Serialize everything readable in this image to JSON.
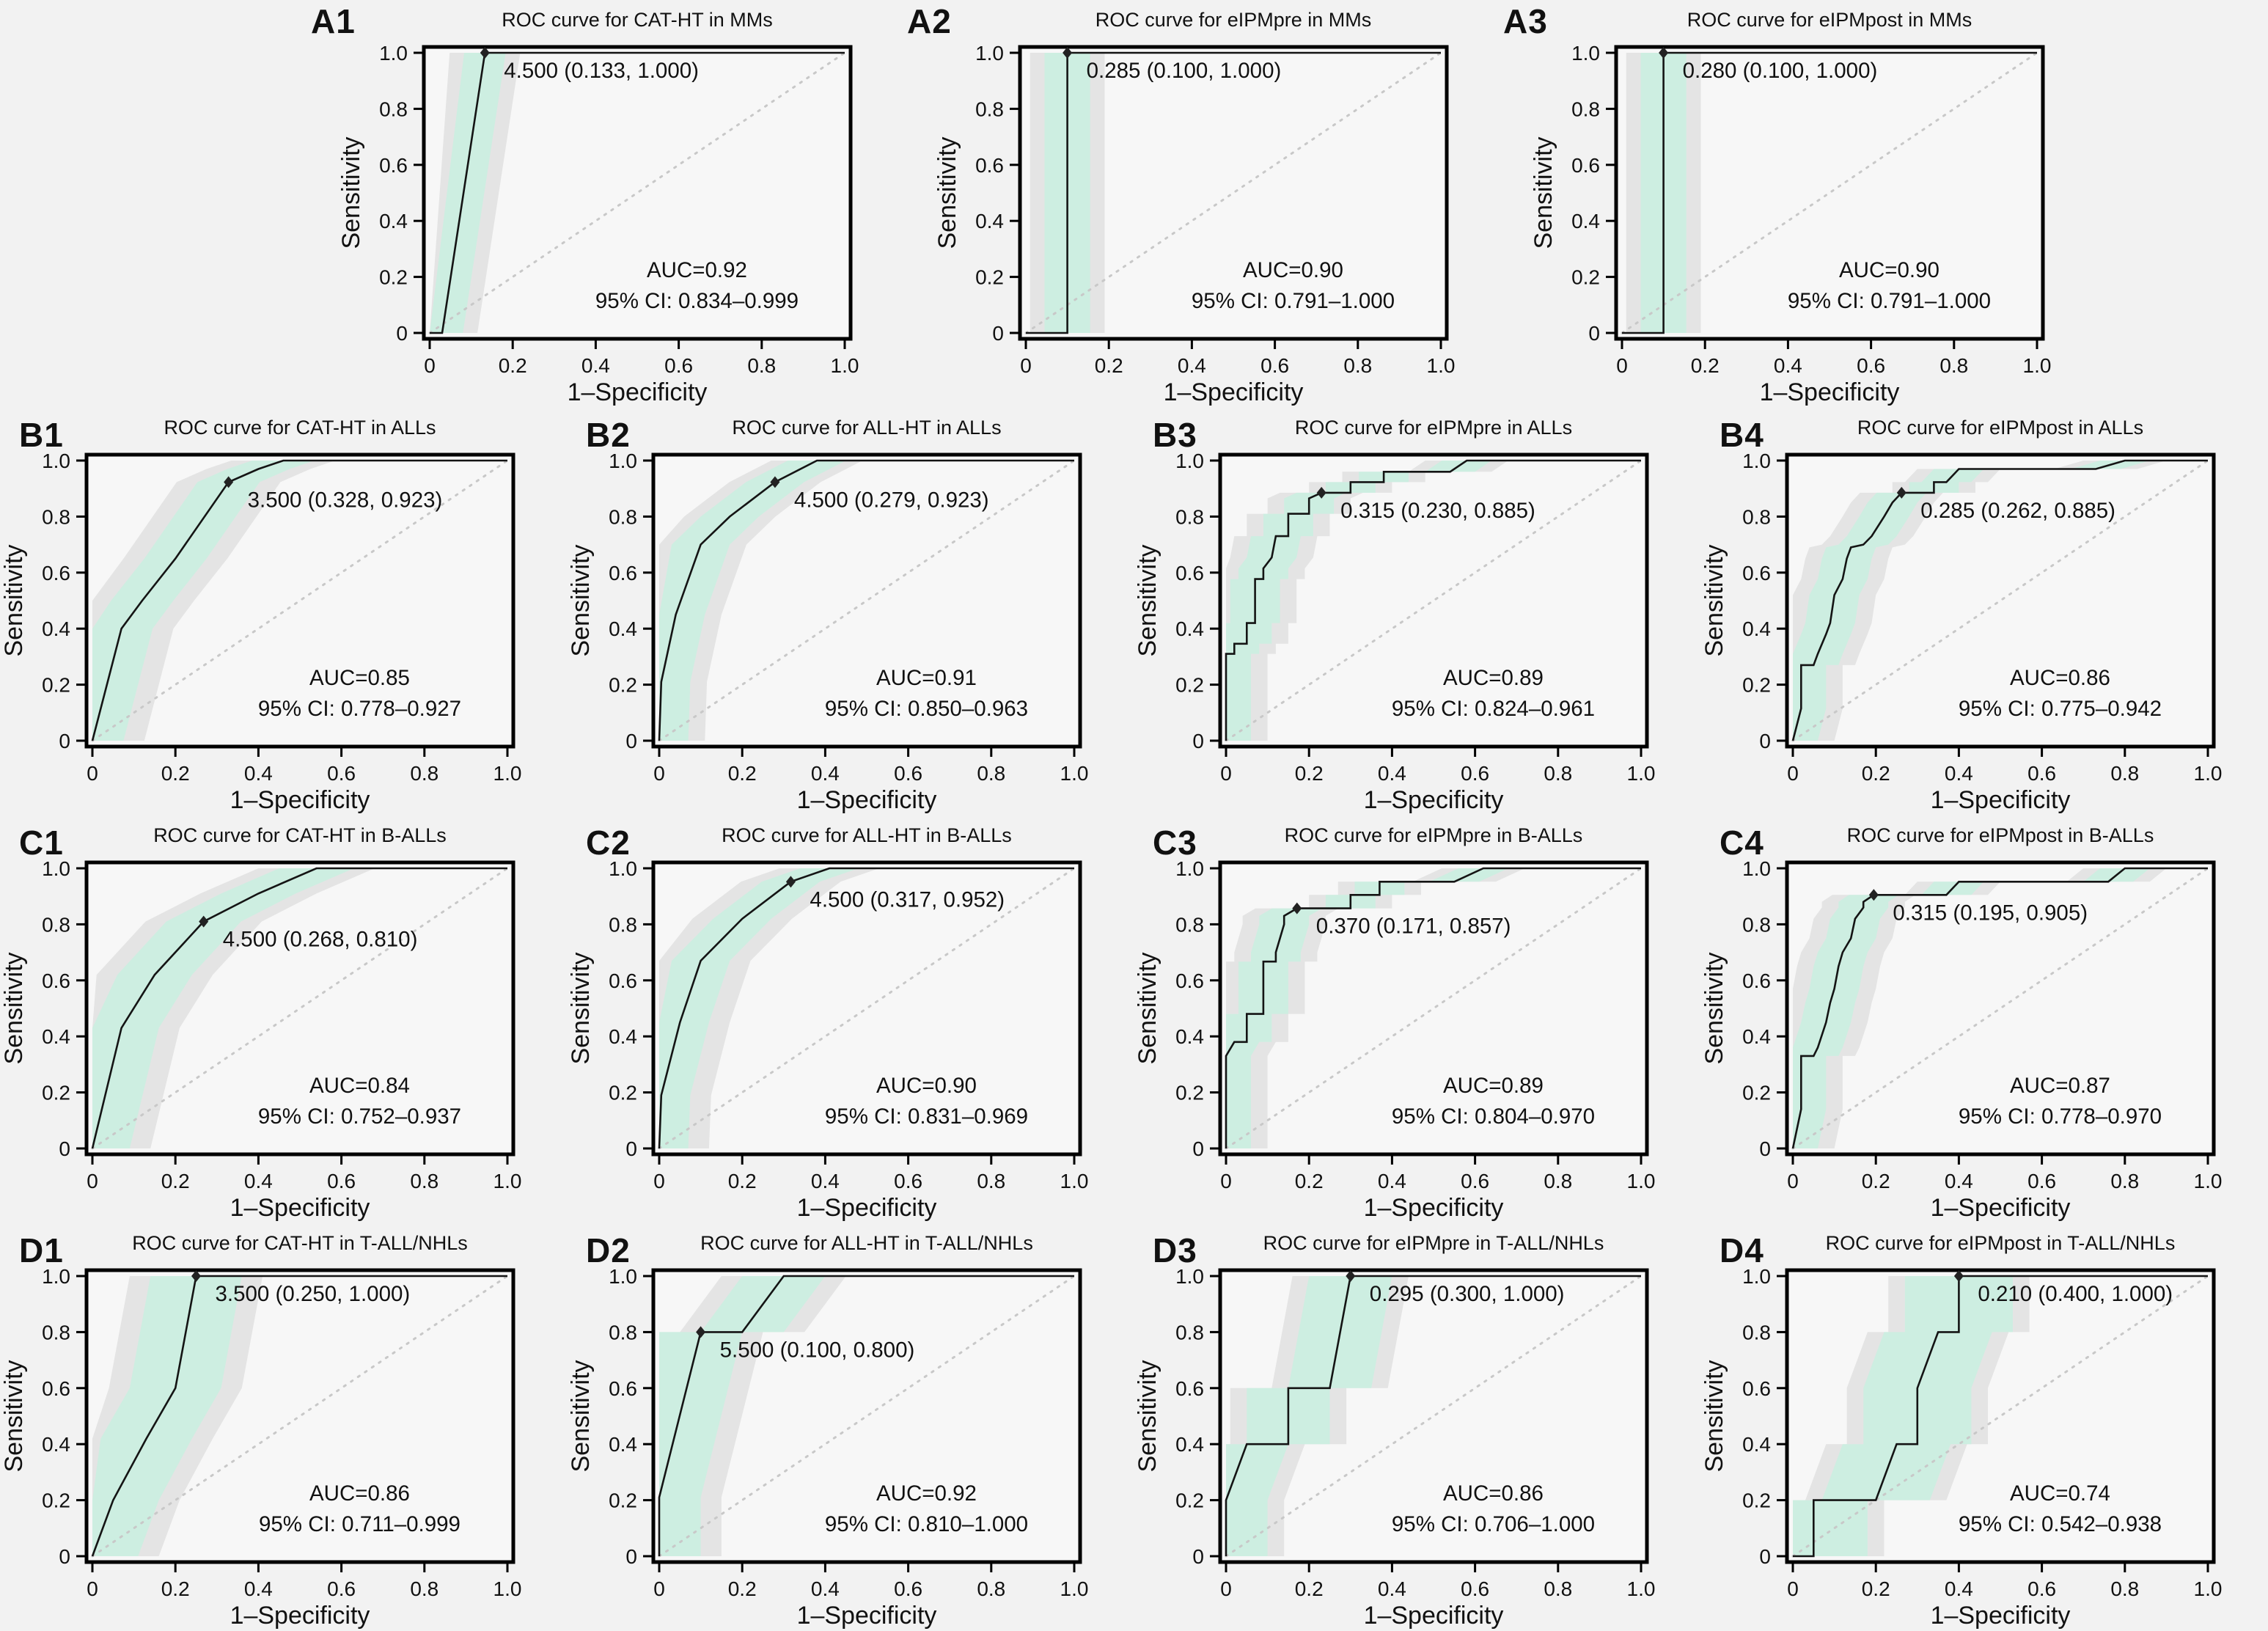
{
  "figure": {
    "x_label": "1–Specificity",
    "y_label": "Sensitivity",
    "ticks": [
      "0",
      "0.2",
      "0.4",
      "0.6",
      "0.8",
      "1.0"
    ],
    "colors": {
      "background": "#f2f2f2",
      "plot_fill": "#f7f7f7",
      "band_green": "#cdeee1",
      "band_gray": "#e4e4e4",
      "curve": "#141414",
      "diagonal": "#c8c8c8",
      "axis": "#000000",
      "marker": "#222222"
    }
  },
  "chart_data": [
    {
      "panel": "A1",
      "row": 0,
      "type": "line",
      "title": "ROC curve for CAT-HT in MMs",
      "xlabel": "1–Specificity",
      "ylabel": "Sensitivity",
      "xlim": [
        0,
        1
      ],
      "ylim": [
        0,
        1
      ],
      "cutoff_label": "4.500 (0.133, 1.000)",
      "cutoff_point": [
        0.133,
        1.0
      ],
      "auc_text": "AUC=0.92",
      "ci_text": "95% CI: 0.834–0.999",
      "roc_points": [
        [
          0,
          0
        ],
        [
          0.03,
          0
        ],
        [
          0.133,
          1
        ],
        [
          1,
          1
        ]
      ],
      "band_half_width": {
        "green": 0.05,
        "gray": 0.085
      }
    },
    {
      "panel": "A2",
      "row": 0,
      "type": "line",
      "title": "ROC curve for eIPMpre in MMs",
      "xlabel": "1–Specificity",
      "ylabel": "Sensitivity",
      "xlim": [
        0,
        1
      ],
      "ylim": [
        0,
        1
      ],
      "cutoff_label": "0.285 (0.100, 1.000)",
      "cutoff_point": [
        0.1,
        1.0
      ],
      "auc_text": "AUC=0.90",
      "ci_text": "95% CI: 0.791–1.000",
      "roc_points": [
        [
          0,
          0
        ],
        [
          0.1,
          0
        ],
        [
          0.1,
          1
        ],
        [
          1,
          1
        ]
      ],
      "band_half_width": {
        "green": 0.055,
        "gray": 0.09
      }
    },
    {
      "panel": "A3",
      "row": 0,
      "type": "line",
      "title": "ROC curve for eIPMpost in MMs",
      "xlabel": "1–Specificity",
      "ylabel": "Sensitivity",
      "xlim": [
        0,
        1
      ],
      "ylim": [
        0,
        1
      ],
      "cutoff_label": "0.280 (0.100, 1.000)",
      "cutoff_point": [
        0.1,
        1.0
      ],
      "auc_text": "AUC=0.90",
      "ci_text": "95% CI: 0.791–1.000",
      "roc_points": [
        [
          0,
          0
        ],
        [
          0.1,
          0
        ],
        [
          0.1,
          1
        ],
        [
          1,
          1
        ]
      ],
      "band_half_width": {
        "green": 0.055,
        "gray": 0.09
      }
    },
    {
      "panel": "B1",
      "row": 1,
      "type": "line",
      "title": "ROC curve for CAT-HT in ALLs",
      "xlabel": "1–Specificity",
      "ylabel": "Sensitivity",
      "xlim": [
        0,
        1
      ],
      "ylim": [
        0,
        1
      ],
      "cutoff_label": "3.500 (0.328, 0.923)",
      "cutoff_point": [
        0.328,
        0.923
      ],
      "auc_text": "AUC=0.85",
      "ci_text": "95% CI: 0.778–0.927",
      "roc_points": [
        [
          0,
          0
        ],
        [
          0.07,
          0.4
        ],
        [
          0.12,
          0.5
        ],
        [
          0.2,
          0.65
        ],
        [
          0.328,
          0.923
        ],
        [
          0.4,
          0.97
        ],
        [
          0.46,
          1
        ],
        [
          1,
          1
        ]
      ],
      "band_half_width": {
        "green": 0.075,
        "gray": 0.125
      }
    },
    {
      "panel": "B2",
      "row": 1,
      "type": "line",
      "title": "ROC curve for ALL-HT in ALLs",
      "xlabel": "1–Specificity",
      "ylabel": "Sensitivity",
      "xlim": [
        0,
        1
      ],
      "ylim": [
        0,
        1
      ],
      "cutoff_label": "4.500 (0.279, 0.923)",
      "cutoff_point": [
        0.279,
        0.923
      ],
      "auc_text": "AUC=0.91",
      "ci_text": "95% CI: 0.850–0.963",
      "roc_points": [
        [
          0,
          0
        ],
        [
          0.005,
          0.21
        ],
        [
          0.04,
          0.45
        ],
        [
          0.1,
          0.7
        ],
        [
          0.17,
          0.8
        ],
        [
          0.279,
          0.923
        ],
        [
          0.38,
          1
        ],
        [
          1,
          1
        ]
      ],
      "band_half_width": {
        "green": 0.07,
        "gray": 0.11
      }
    },
    {
      "panel": "B3",
      "row": 1,
      "type": "line",
      "title": "ROC curve for eIPMpre in ALLs",
      "xlabel": "1–Specificity",
      "ylabel": "Sensitivity",
      "xlim": [
        0,
        1
      ],
      "ylim": [
        0,
        1
      ],
      "cutoff_label": "0.315 (0.230, 0.885)",
      "cutoff_point": [
        0.23,
        0.885
      ],
      "auc_text": "AUC=0.89",
      "ci_text": "95% CI: 0.824–0.961",
      "roc_points": [
        [
          0,
          0
        ],
        [
          0,
          0.31
        ],
        [
          0.02,
          0.31
        ],
        [
          0.02,
          0.346
        ],
        [
          0.05,
          0.346
        ],
        [
          0.05,
          0.42
        ],
        [
          0.07,
          0.42
        ],
        [
          0.07,
          0.577
        ],
        [
          0.09,
          0.577
        ],
        [
          0.09,
          0.615
        ],
        [
          0.11,
          0.654
        ],
        [
          0.12,
          0.73
        ],
        [
          0.15,
          0.73
        ],
        [
          0.15,
          0.81
        ],
        [
          0.2,
          0.81
        ],
        [
          0.2,
          0.865
        ],
        [
          0.23,
          0.885
        ],
        [
          0.3,
          0.885
        ],
        [
          0.3,
          0.923
        ],
        [
          0.38,
          0.923
        ],
        [
          0.38,
          0.96
        ],
        [
          0.54,
          0.96
        ],
        [
          0.58,
          1
        ],
        [
          1,
          1
        ]
      ],
      "band_half_width": {
        "green": 0.06,
        "gray": 0.1
      }
    },
    {
      "panel": "B4",
      "row": 1,
      "type": "line",
      "title": "ROC curve for eIPMpost in ALLs",
      "xlabel": "1–Specificity",
      "ylabel": "Sensitivity",
      "xlim": [
        0,
        1
      ],
      "ylim": [
        0,
        1
      ],
      "cutoff_label": "0.285 (0.262, 0.885)",
      "cutoff_point": [
        0.262,
        0.885
      ],
      "auc_text": "AUC=0.86",
      "ci_text": "95% CI: 0.775–0.942",
      "roc_points": [
        [
          0,
          0
        ],
        [
          0.02,
          0.115
        ],
        [
          0.02,
          0.27
        ],
        [
          0.05,
          0.27
        ],
        [
          0.06,
          0.31
        ],
        [
          0.08,
          0.38
        ],
        [
          0.09,
          0.42
        ],
        [
          0.1,
          0.52
        ],
        [
          0.12,
          0.577
        ],
        [
          0.13,
          0.65
        ],
        [
          0.14,
          0.69
        ],
        [
          0.17,
          0.7
        ],
        [
          0.19,
          0.73
        ],
        [
          0.22,
          0.8
        ],
        [
          0.24,
          0.85
        ],
        [
          0.262,
          0.885
        ],
        [
          0.34,
          0.885
        ],
        [
          0.34,
          0.923
        ],
        [
          0.37,
          0.923
        ],
        [
          0.4,
          0.97
        ],
        [
          0.73,
          0.97
        ],
        [
          0.8,
          1
        ],
        [
          1,
          1
        ]
      ],
      "band_half_width": {
        "green": 0.06,
        "gray": 0.1
      }
    },
    {
      "panel": "C1",
      "row": 2,
      "type": "line",
      "title": "ROC curve for CAT-HT in B-ALLs",
      "xlabel": "1–Specificity",
      "ylabel": "Sensitivity",
      "xlim": [
        0,
        1
      ],
      "ylim": [
        0,
        1
      ],
      "cutoff_label": "4.500 (0.268, 0.810)",
      "cutoff_point": [
        0.268,
        0.81
      ],
      "auc_text": "AUC=0.84",
      "ci_text": "95% CI: 0.752–0.937",
      "roc_points": [
        [
          0,
          0
        ],
        [
          0.07,
          0.43
        ],
        [
          0.15,
          0.62
        ],
        [
          0.268,
          0.81
        ],
        [
          0.4,
          0.91
        ],
        [
          0.54,
          1
        ],
        [
          1,
          1
        ]
      ],
      "band_half_width": {
        "green": 0.09,
        "gray": 0.14
      }
    },
    {
      "panel": "C2",
      "row": 2,
      "type": "line",
      "title": "ROC curve for ALL-HT in B-ALLs",
      "xlabel": "1–Specificity",
      "ylabel": "Sensitivity",
      "xlim": [
        0,
        1
      ],
      "ylim": [
        0,
        1
      ],
      "cutoff_label": "4.500 (0.317, 0.952)",
      "cutoff_point": [
        0.317,
        0.952
      ],
      "auc_text": "AUC=0.90",
      "ci_text": "95% CI: 0.831–0.969",
      "roc_points": [
        [
          0,
          0
        ],
        [
          0.005,
          0.19
        ],
        [
          0.05,
          0.45
        ],
        [
          0.1,
          0.67
        ],
        [
          0.2,
          0.82
        ],
        [
          0.317,
          0.952
        ],
        [
          0.41,
          1
        ],
        [
          1,
          1
        ]
      ],
      "band_half_width": {
        "green": 0.07,
        "gray": 0.12
      }
    },
    {
      "panel": "C3",
      "row": 2,
      "type": "line",
      "title": "ROC curve for eIPMpre in B-ALLs",
      "xlabel": "1–Specificity",
      "ylabel": "Sensitivity",
      "xlim": [
        0,
        1
      ],
      "ylim": [
        0,
        1
      ],
      "cutoff_label": "0.370 (0.171, 0.857)",
      "cutoff_point": [
        0.171,
        0.857
      ],
      "auc_text": "AUC=0.89",
      "ci_text": "95% CI: 0.804–0.970",
      "roc_points": [
        [
          0,
          0
        ],
        [
          0,
          0.33
        ],
        [
          0.02,
          0.38
        ],
        [
          0.05,
          0.38
        ],
        [
          0.05,
          0.48
        ],
        [
          0.09,
          0.48
        ],
        [
          0.09,
          0.667
        ],
        [
          0.12,
          0.667
        ],
        [
          0.12,
          0.7
        ],
        [
          0.14,
          0.8
        ],
        [
          0.14,
          0.83
        ],
        [
          0.171,
          0.857
        ],
        [
          0.3,
          0.857
        ],
        [
          0.3,
          0.905
        ],
        [
          0.37,
          0.905
        ],
        [
          0.37,
          0.952
        ],
        [
          0.55,
          0.952
        ],
        [
          0.62,
          1
        ],
        [
          1,
          1
        ]
      ],
      "band_half_width": {
        "green": 0.06,
        "gray": 0.1
      }
    },
    {
      "panel": "C4",
      "row": 2,
      "type": "line",
      "title": "ROC curve for eIPMpost in B-ALLs",
      "xlabel": "1–Specificity",
      "ylabel": "Sensitivity",
      "xlim": [
        0,
        1
      ],
      "ylim": [
        0,
        1
      ],
      "cutoff_label": "0.315 (0.195, 0.905)",
      "cutoff_point": [
        0.195,
        0.905
      ],
      "auc_text": "AUC=0.87",
      "ci_text": "95% CI: 0.778–0.970",
      "roc_points": [
        [
          0,
          0
        ],
        [
          0.02,
          0.14
        ],
        [
          0.02,
          0.33
        ],
        [
          0.05,
          0.33
        ],
        [
          0.06,
          0.36
        ],
        [
          0.08,
          0.45
        ],
        [
          0.09,
          0.52
        ],
        [
          0.1,
          0.57
        ],
        [
          0.11,
          0.65
        ],
        [
          0.12,
          0.7
        ],
        [
          0.14,
          0.75
        ],
        [
          0.15,
          0.82
        ],
        [
          0.17,
          0.86
        ],
        [
          0.17,
          0.88
        ],
        [
          0.195,
          0.905
        ],
        [
          0.37,
          0.905
        ],
        [
          0.4,
          0.952
        ],
        [
          0.76,
          0.952
        ],
        [
          0.8,
          1
        ],
        [
          1,
          1
        ]
      ],
      "band_half_width": {
        "green": 0.06,
        "gray": 0.1
      }
    },
    {
      "panel": "D1",
      "row": 3,
      "type": "line",
      "title": "ROC curve for CAT-HT in T-ALL/NHLs",
      "xlabel": "1–Specificity",
      "ylabel": "Sensitivity",
      "xlim": [
        0,
        1
      ],
      "ylim": [
        0,
        1
      ],
      "cutoff_label": "3.500 (0.250, 1.000)",
      "cutoff_point": [
        0.25,
        1.0
      ],
      "auc_text": "AUC=0.86",
      "ci_text": "95% CI: 0.711–0.999",
      "roc_points": [
        [
          0,
          0
        ],
        [
          0.05,
          0.2
        ],
        [
          0.13,
          0.42
        ],
        [
          0.2,
          0.6
        ],
        [
          0.25,
          1
        ],
        [
          1,
          1
        ]
      ],
      "band_half_width": {
        "green": 0.11,
        "gray": 0.16
      }
    },
    {
      "panel": "D2",
      "row": 3,
      "type": "line",
      "title": "ROC curve for ALL-HT in T-ALL/NHLs",
      "xlabel": "1–Specificity",
      "ylabel": "Sensitivity",
      "xlim": [
        0,
        1
      ],
      "ylim": [
        0,
        1
      ],
      "cutoff_label": "5.500 (0.100, 0.800)",
      "cutoff_point": [
        0.1,
        0.8
      ],
      "auc_text": "AUC=0.92",
      "ci_text": "95% CI: 0.810–1.000",
      "roc_points": [
        [
          0,
          0
        ],
        [
          0,
          0.21
        ],
        [
          0.1,
          0.8
        ],
        [
          0.2,
          0.8
        ],
        [
          0.3,
          1
        ],
        [
          1,
          1
        ]
      ],
      "band_half_width": {
        "green": 0.1,
        "gray": 0.15
      }
    },
    {
      "panel": "D3",
      "row": 3,
      "type": "line",
      "title": "ROC curve for eIPMpre in T-ALL/NHLs",
      "xlabel": "1–Specificity",
      "ylabel": "Sensitivity",
      "xlim": [
        0,
        1
      ],
      "ylim": [
        0,
        1
      ],
      "cutoff_label": "0.295 (0.300, 1.000)",
      "cutoff_point": [
        0.3,
        1.0
      ],
      "auc_text": "AUC=0.86",
      "ci_text": "95% CI: 0.706–1.000",
      "roc_points": [
        [
          0,
          0
        ],
        [
          0,
          0.2
        ],
        [
          0.05,
          0.4
        ],
        [
          0.15,
          0.4
        ],
        [
          0.15,
          0.6
        ],
        [
          0.25,
          0.6
        ],
        [
          0.3,
          1
        ],
        [
          1,
          1
        ]
      ],
      "band_half_width": {
        "green": 0.1,
        "gray": 0.14
      }
    },
    {
      "panel": "D4",
      "row": 3,
      "type": "line",
      "title": "ROC curve for eIPMpost in T-ALL/NHLs",
      "xlabel": "1–Specificity",
      "ylabel": "Sensitivity",
      "xlim": [
        0,
        1
      ],
      "ylim": [
        0,
        1
      ],
      "cutoff_label": "0.210 (0.400, 1.000)",
      "cutoff_point": [
        0.4,
        1.0
      ],
      "auc_text": "AUC=0.74",
      "ci_text": "95% CI: 0.542–0.938",
      "roc_points": [
        [
          0,
          0
        ],
        [
          0.05,
          0
        ],
        [
          0.05,
          0.2
        ],
        [
          0.2,
          0.2
        ],
        [
          0.25,
          0.4
        ],
        [
          0.3,
          0.4
        ],
        [
          0.3,
          0.6
        ],
        [
          0.35,
          0.8
        ],
        [
          0.4,
          0.8
        ],
        [
          0.4,
          1
        ],
        [
          1,
          1
        ]
      ],
      "band_half_width": {
        "green": 0.13,
        "gray": 0.17
      }
    }
  ]
}
